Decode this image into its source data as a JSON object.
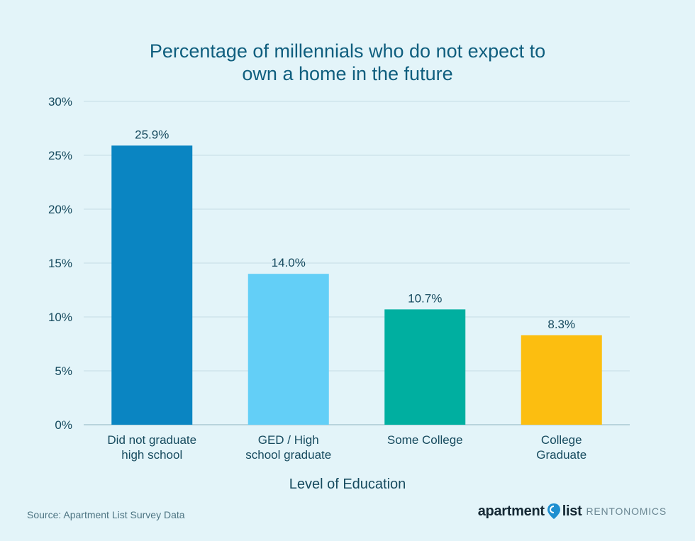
{
  "colors": {
    "background": "#e3f4f9",
    "bars": [
      "#0a85c2",
      "#63cff7",
      "#00afa0",
      "#fcbe10"
    ],
    "text": "#164a5e",
    "title": "#0f5e7e",
    "brand_pin": "#1e8fd0"
  },
  "chart_data": {
    "type": "bar",
    "title_lines": [
      "Percentage of millennials who do not expect to",
      "own a home in the future"
    ],
    "xlabel": "Level of Education",
    "ylabel": "",
    "ylim": [
      0,
      30
    ],
    "yticks": [
      {
        "value": 0,
        "label": "0%"
      },
      {
        "value": 5,
        "label": "5%"
      },
      {
        "value": 10,
        "label": "10%"
      },
      {
        "value": 15,
        "label": "15%"
      },
      {
        "value": 20,
        "label": "20%"
      },
      {
        "value": 25,
        "label": "25%"
      },
      {
        "value": 30,
        "label": "30%"
      }
    ],
    "categories": [
      [
        "Did not graduate",
        "high school"
      ],
      [
        "GED / High",
        "school graduate"
      ],
      [
        "Some College"
      ],
      [
        "College",
        "Graduate"
      ]
    ],
    "values": [
      25.9,
      14.0,
      10.7,
      8.3
    ],
    "value_labels": [
      "25.9%",
      "14.0%",
      "10.7%",
      "8.3%"
    ],
    "grid": true,
    "legend": "none"
  },
  "footer": {
    "source": "Source: Apartment List Survey Data",
    "brand_part1": "apartment",
    "brand_part2": "list",
    "brand_sub": "RENTONOMICS"
  }
}
